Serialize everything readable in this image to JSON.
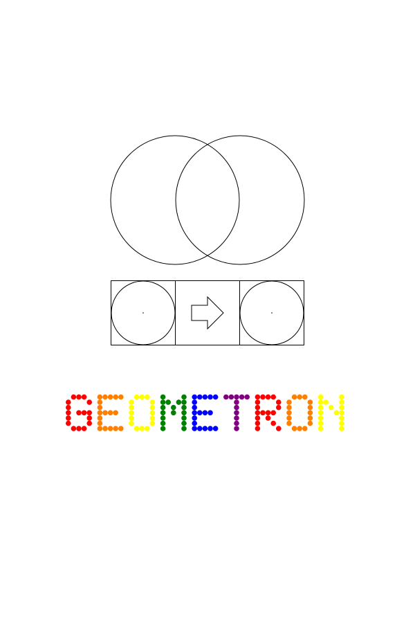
{
  "title": "GEOMETRON",
  "letter_colors": [
    "#ff0000",
    "#ff8000",
    "#ffff00",
    "#008000",
    "#0000ff",
    "#800080",
    "#ff0000",
    "#ff8000",
    "#ffff00"
  ]
}
